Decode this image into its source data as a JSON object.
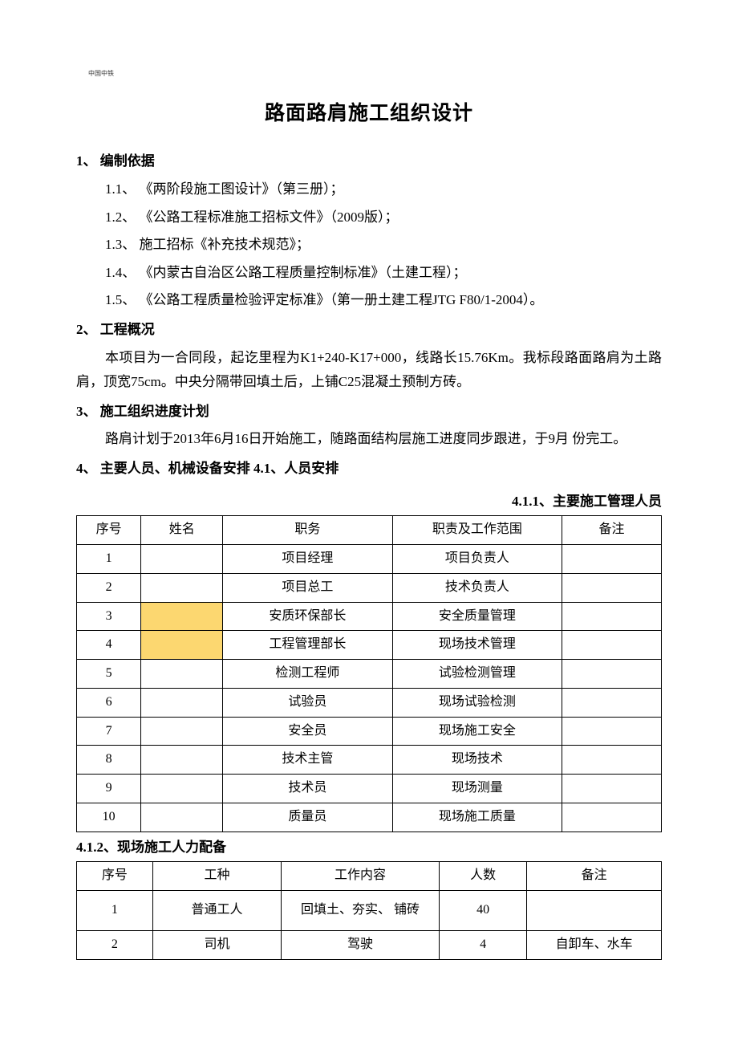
{
  "header_tiny": "中国中铁",
  "title": "路面路肩施工组织设计",
  "s1": {
    "heading": "1、 编制依据",
    "l1": "1.1、 《两阶段施工图设计》（第三册）；",
    "l2": "1.2、  《公路工程标准施工招标文件》（2009版）；",
    "l3": "1.3、  施工招标《补充技术规范》；",
    "l4": "1.4、  《内蒙古自治区公路工程质量控制标准》（土建工程）；",
    "l5": "1.5、  《公路工程质量检验评定标准》（第一册土建工程JTG F80/1-2004）。"
  },
  "s2": {
    "heading": "2、 工程概况",
    "p1": "本项目为一合同段，起讫里程为K1+240-K17+000，线路长15.76Km。我标段路面路肩为土路肩，顶宽75cm。中央分隔带回填土后，上铺C25混凝土预制方砖。"
  },
  "s3": {
    "heading": "3、 施工组织进度计划",
    "p1": "路肩计划于2013年6月16日开始施工，随路面结构层施工进度同步跟进，于9月 份完工。"
  },
  "s4": {
    "heading": "4、 主要人员、机械设备安排 4.1、人员安排"
  },
  "t1": {
    "caption": "4.1.1、主要施工管理人员",
    "headers": {
      "h1": "序号",
      "h2": "姓名",
      "h3": "职务",
      "h4": "职责及工作范围",
      "h5": "备注"
    },
    "rows": [
      {
        "no": "1",
        "name": "",
        "role": "项目经理",
        "duty": "项目负责人",
        "note": "",
        "hl": false
      },
      {
        "no": "2",
        "name": "",
        "role": "项目总工",
        "duty": "技术负责人",
        "note": "",
        "hl": false
      },
      {
        "no": "3",
        "name": "",
        "role": "安质环保部长",
        "duty": "安全质量管理",
        "note": "",
        "hl": true
      },
      {
        "no": "4",
        "name": "",
        "role": "工程管理部长",
        "duty": "现场技术管理",
        "note": "",
        "hl": true
      },
      {
        "no": "5",
        "name": "",
        "role": "检测工程师",
        "duty": "试验检测管理",
        "note": "",
        "hl": false
      },
      {
        "no": "6",
        "name": "",
        "role": "试验员",
        "duty": "现场试验检测",
        "note": "",
        "hl": false
      },
      {
        "no": "7",
        "name": "",
        "role": "安全员",
        "duty": "现场施工安全",
        "note": "",
        "hl": false
      },
      {
        "no": "8",
        "name": "",
        "role": "技术主管",
        "duty": "现场技术",
        "note": "",
        "hl": false
      },
      {
        "no": "9",
        "name": "",
        "role": "技术员",
        "duty": "现场测量",
        "note": "",
        "hl": false
      },
      {
        "no": "10",
        "name": "",
        "role": "质量员",
        "duty": "现场施工质量",
        "note": "",
        "hl": false
      }
    ]
  },
  "t2": {
    "caption": "4.1.2、现场施工人力配备",
    "headers": {
      "h1": "序号",
      "h2": "工种",
      "h3": "工作内容",
      "h4": "人数",
      "h5": "备注"
    },
    "rows": [
      {
        "no": "1",
        "type": "普通工人",
        "work": "回填土、夯实、 铺砖",
        "count": "40",
        "note": "",
        "tall": true
      },
      {
        "no": "2",
        "type": "司机",
        "work": "驾驶",
        "count": "4",
        "note": "自卸车、水车",
        "tall": false
      }
    ]
  },
  "colors": {
    "highlight": "#fcd770",
    "text": "#000000",
    "bg": "#ffffff",
    "border": "#000000"
  }
}
